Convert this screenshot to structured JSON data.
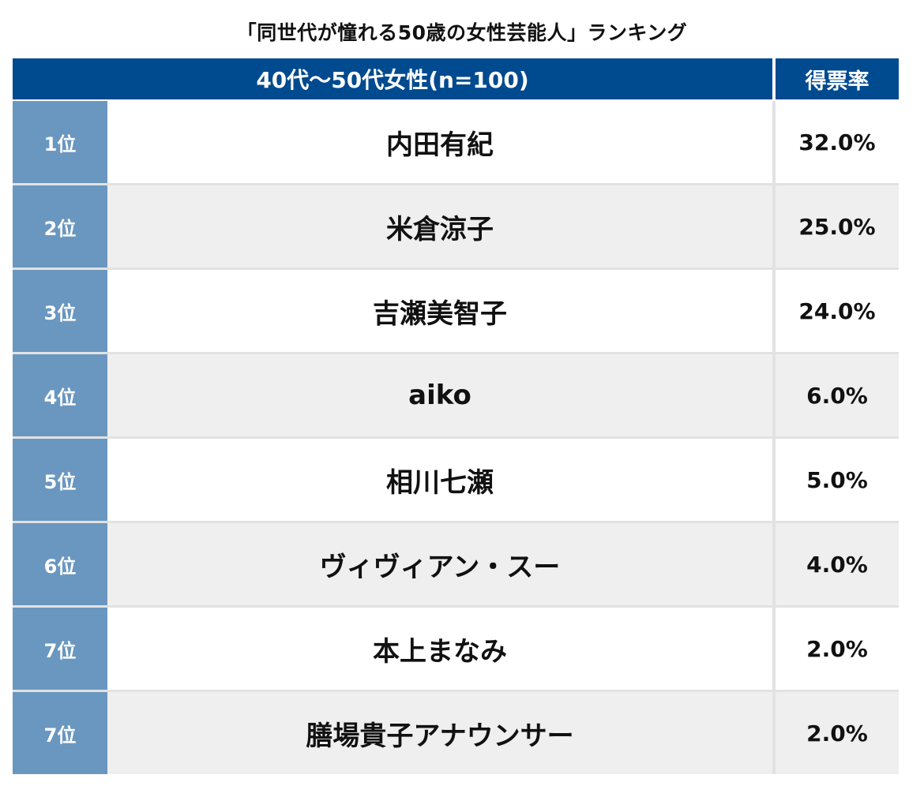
{
  "title": "「同世代が憧れる50歳の女性芸能人」ランキング",
  "header": {
    "group_label": "40代〜50代女性(n=100)",
    "rate_label": "得票率"
  },
  "colors": {
    "header_bg": "#004a8f",
    "rank_bg": "#6a97bf",
    "row_alt_bg": "#efefef"
  },
  "rows": [
    {
      "rank": "1位",
      "name": "内田有紀",
      "rate": "32.0%"
    },
    {
      "rank": "2位",
      "name": "米倉涼子",
      "rate": "25.0%"
    },
    {
      "rank": "3位",
      "name": "吉瀬美智子",
      "rate": "24.0%"
    },
    {
      "rank": "4位",
      "name": "aiko",
      "rate": "6.0%"
    },
    {
      "rank": "5位",
      "name": "相川七瀬",
      "rate": "5.0%"
    },
    {
      "rank": "6位",
      "name": "ヴィヴィアン・スー",
      "rate": "4.0%"
    },
    {
      "rank": "7位",
      "name": "本上まなみ",
      "rate": "2.0%"
    },
    {
      "rank": "7位",
      "name": "膳場貴子アナウンサー",
      "rate": "2.0%"
    }
  ]
}
